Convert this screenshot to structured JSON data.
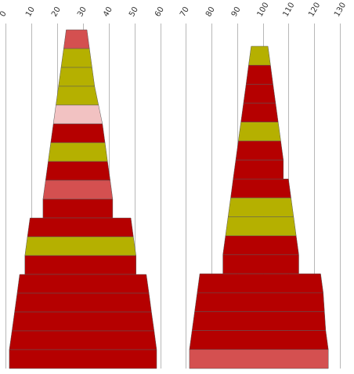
{
  "chart_data": [
    {
      "type": "area",
      "title": "",
      "xlabel": "",
      "ylabel": "",
      "axis": "top",
      "grid": true,
      "xlim": [
        0,
        60
      ],
      "xticks": [
        0,
        10,
        20,
        30,
        40,
        50,
        60
      ],
      "tick_labels": [
        "0",
        "10",
        "20",
        "30",
        "40",
        "50",
        "60"
      ],
      "bands": [
        {
          "left": 23.5,
          "right": 31.5,
          "color": "#d45050"
        },
        {
          "left": 22.5,
          "right": 32.5,
          "color": "#b5b000"
        },
        {
          "left": 21.5,
          "right": 33.5,
          "color": "#b5b000"
        },
        {
          "left": 20.5,
          "right": 34.5,
          "color": "#b5b000"
        },
        {
          "left": 19.5,
          "right": 36.0,
          "color": "#f2c2c2"
        },
        {
          "left": 18.5,
          "right": 37.5,
          "color": "#b50000"
        },
        {
          "left": 17.5,
          "right": 38.5,
          "color": "#b5b000"
        },
        {
          "left": 16.5,
          "right": 39.5,
          "color": "#b50000"
        },
        {
          "left": 15.5,
          "right": 40.5,
          "color": "#d45050"
        },
        {
          "left": 14.5,
          "right": 41.5,
          "color": "#b50000"
        },
        {
          "left": 9.5,
          "right": 48.5,
          "color": "#b50000"
        },
        {
          "left": 8.5,
          "right": 49.5,
          "color": "#b5b000"
        },
        {
          "left": 7.5,
          "right": 50.5,
          "color": "#b50000"
        },
        {
          "left": 5.5,
          "right": 54.5,
          "color": "#b50000"
        },
        {
          "left": 4.5,
          "right": 55.5,
          "color": "#b50000"
        },
        {
          "left": 3.5,
          "right": 56.5,
          "color": "#b50000"
        },
        {
          "left": 2.5,
          "right": 57.5,
          "color": "#b50000"
        },
        {
          "left": 1.5,
          "right": 58.5,
          "color": "#b50000"
        }
      ]
    },
    {
      "type": "area",
      "title": "",
      "xlabel": "",
      "ylabel": "",
      "axis": "top",
      "grid": true,
      "xlim": [
        70,
        130
      ],
      "xticks": [
        70,
        80,
        90,
        100,
        110,
        120,
        130
      ],
      "tick_labels": [
        "70",
        "80",
        "90",
        "100",
        "110",
        "120",
        "130"
      ],
      "bands": [
        {
          "left": 95.5,
          "right": 102.0,
          "color": "#b5b000"
        },
        {
          "left": 94.5,
          "right": 103.0,
          "color": "#b50000"
        },
        {
          "left": 93.5,
          "right": 104.0,
          "color": "#b50000"
        },
        {
          "left": 92.5,
          "right": 105.0,
          "color": "#b50000"
        },
        {
          "left": 91.5,
          "right": 106.0,
          "color": "#b5b000"
        },
        {
          "left": 90.5,
          "right": 107.0,
          "color": "#b50000"
        },
        {
          "left": 89.5,
          "right": 108.0,
          "color": "#b50000"
        },
        {
          "left": 88.5,
          "right": 110.0,
          "color": "#b50000"
        },
        {
          "left": 87.5,
          "right": 111.0,
          "color": "#b5b000"
        },
        {
          "left": 86.5,
          "right": 112.0,
          "color": "#b5b000"
        },
        {
          "left": 85.5,
          "right": 113.0,
          "color": "#b50000"
        },
        {
          "left": 84.5,
          "right": 114.0,
          "color": "#b50000"
        },
        {
          "left": 75.5,
          "right": 122.5,
          "color": "#b50000"
        },
        {
          "left": 74.5,
          "right": 123.5,
          "color": "#b50000"
        },
        {
          "left": 73.5,
          "right": 124.0,
          "color": "#b50000"
        },
        {
          "left": 72.5,
          "right": 124.5,
          "color": "#b50000"
        },
        {
          "left": 71.5,
          "right": 125.5,
          "color": "#d45050"
        }
      ]
    }
  ]
}
